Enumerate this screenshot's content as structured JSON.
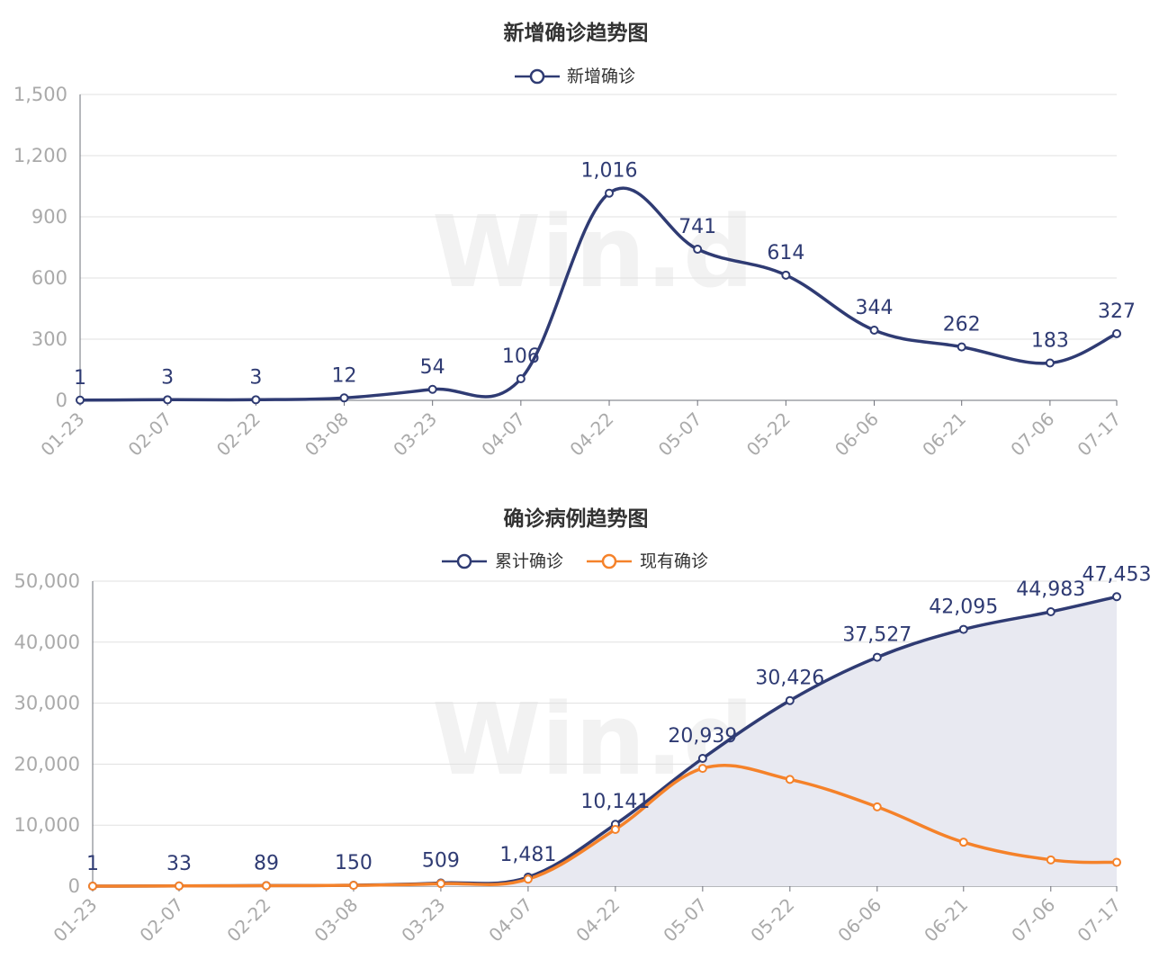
{
  "chart_data": [
    {
      "type": "line",
      "title": "新增确诊趋势图",
      "legend": [
        "新增确诊"
      ],
      "legend_position": "top-center",
      "x_ticks": [
        "01-23",
        "02-07",
        "02-22",
        "03-08",
        "03-23",
        "04-07",
        "04-22",
        "05-07",
        "05-22",
        "06-06",
        "06-21",
        "07-06",
        "07-17"
      ],
      "y_ticks": [
        "0",
        "300",
        "600",
        "900",
        "1,200",
        "1,500"
      ],
      "ylim": [
        0,
        1500
      ],
      "grid": true,
      "series": [
        {
          "name": "新增确诊",
          "color": "#2f3b73",
          "x": [
            "01-23",
            "02-07",
            "02-22",
            "03-08",
            "03-23",
            "04-07",
            "04-22",
            "05-07",
            "05-22",
            "06-06",
            "06-21",
            "07-06",
            "07-17"
          ],
          "values": [
            1,
            3,
            3,
            12,
            54,
            106,
            1016,
            741,
            614,
            344,
            262,
            183,
            327
          ],
          "labels": [
            "1",
            "3",
            "3",
            "12",
            "54",
            "106",
            "1,016",
            "741",
            "614",
            "344",
            "262",
            "183",
            "327"
          ]
        }
      ]
    },
    {
      "type": "area",
      "title": "确诊病例趋势图",
      "legend": [
        "累计确诊",
        "现有确诊"
      ],
      "legend_position": "top-center",
      "x_ticks": [
        "01-23",
        "02-07",
        "02-22",
        "03-08",
        "03-23",
        "04-07",
        "04-22",
        "05-07",
        "05-22",
        "06-06",
        "06-21",
        "07-06",
        "07-17"
      ],
      "y_ticks": [
        "0",
        "10,000",
        "20,000",
        "30,000",
        "40,000",
        "50,000"
      ],
      "ylim": [
        0,
        50000
      ],
      "grid": true,
      "series": [
        {
          "name": "累计确诊",
          "color": "#2f3b73",
          "x": [
            "01-23",
            "02-07",
            "02-22",
            "03-08",
            "03-23",
            "04-07",
            "04-22",
            "05-07",
            "05-22",
            "06-06",
            "06-21",
            "07-06",
            "07-17"
          ],
          "values": [
            1,
            33,
            89,
            150,
            509,
            1481,
            10141,
            20939,
            30426,
            37527,
            42095,
            44983,
            47453
          ],
          "labels": [
            "1",
            "33",
            "89",
            "150",
            "509",
            "1,481",
            "10,141",
            "20,939",
            "30,426",
            "37,527",
            "42,095",
            "44,983",
            "47,453"
          ]
        },
        {
          "name": "现有确诊",
          "color": "#f5822a",
          "x": [
            "01-23",
            "02-07",
            "02-22",
            "03-08",
            "03-23",
            "04-07",
            "04-22",
            "05-07",
            "05-22",
            "06-06",
            "06-21",
            "07-06",
            "07-17"
          ],
          "values": [
            1,
            30,
            80,
            130,
            420,
            1150,
            9300,
            19300,
            17500,
            13000,
            7200,
            4300,
            3900
          ]
        }
      ]
    }
  ],
  "watermark": "Win.d"
}
